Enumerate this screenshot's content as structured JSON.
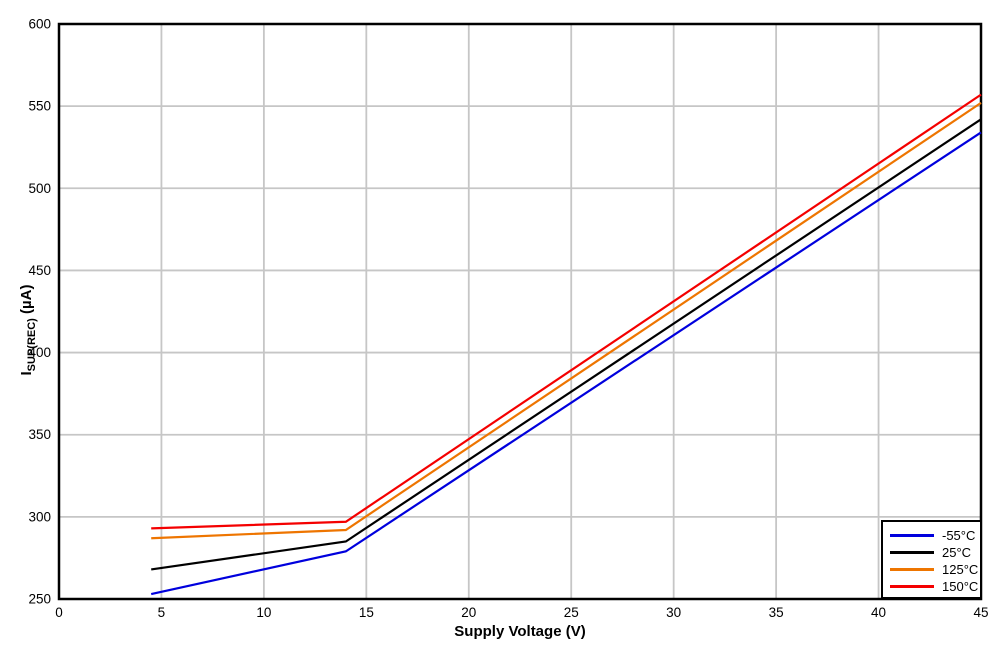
{
  "page": {
    "background": "#ffffff"
  },
  "chart_data": {
    "type": "line",
    "title": "",
    "xlabel": "Supply Voltage (V)",
    "ylabel": "I_SUP(REC) (µA)",
    "ylabel_parts": {
      "base": "I",
      "sub": "SUP(REC)",
      "rest": " (µA)"
    },
    "xlim": [
      0,
      45
    ],
    "ylim": [
      250,
      600
    ],
    "xticks": [
      0,
      5,
      10,
      15,
      20,
      25,
      30,
      35,
      40,
      45
    ],
    "yticks": [
      250,
      300,
      350,
      400,
      450,
      500,
      550,
      600
    ],
    "grid": true,
    "grid_color": "#c6c6c6",
    "axis_color": "#000000",
    "legend_position": "lower right",
    "series": [
      {
        "name": "-55°C",
        "color": "#0000dd",
        "x": [
          4.5,
          14,
          45
        ],
        "y": [
          253,
          279,
          534
        ]
      },
      {
        "name": "25°C",
        "color": "#000000",
        "x": [
          4.5,
          14,
          45
        ],
        "y": [
          268,
          285,
          542
        ]
      },
      {
        "name": "125°C",
        "color": "#ee7500",
        "x": [
          4.5,
          14,
          45
        ],
        "y": [
          287,
          292,
          552
        ]
      },
      {
        "name": "150°C",
        "color": "#f40000",
        "x": [
          4.5,
          14,
          45
        ],
        "y": [
          293,
          297,
          557
        ]
      }
    ]
  }
}
